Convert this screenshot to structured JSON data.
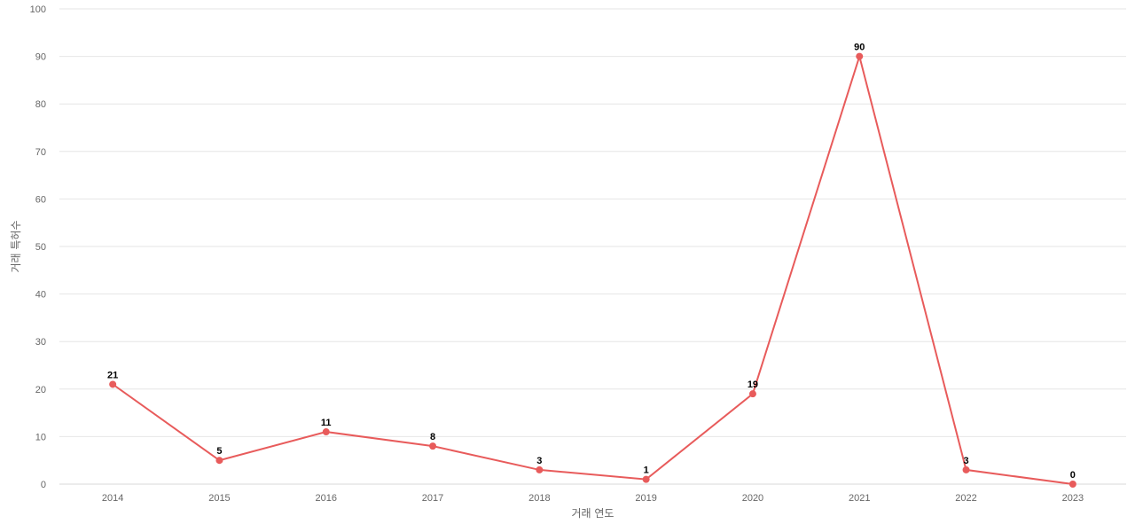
{
  "chart_data": {
    "type": "line",
    "title": "",
    "xlabel": "거래 연도",
    "ylabel": "거래 특허수",
    "categories": [
      "2014",
      "2015",
      "2016",
      "2017",
      "2018",
      "2019",
      "2020",
      "2021",
      "2022",
      "2023"
    ],
    "series": [
      {
        "values": [
          21,
          5,
          11,
          8,
          3,
          1,
          19,
          90,
          3,
          0
        ],
        "color": "#e85b5b"
      }
    ],
    "ylim": [
      0,
      100
    ],
    "yticks": [
      0,
      10,
      20,
      30,
      40,
      50,
      60,
      70,
      80,
      90,
      100
    ],
    "grid": true,
    "legend": "none",
    "data_labels": true
  }
}
